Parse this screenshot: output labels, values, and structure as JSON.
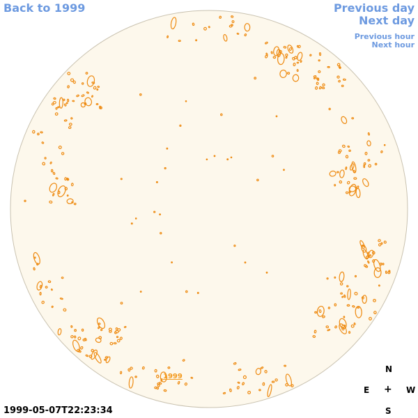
{
  "nav": {
    "back": "Back to 1999",
    "previous_day": "Previous day",
    "next_day": "Next day",
    "previous_hour": "Previous hour",
    "next_hour": "Next hour"
  },
  "timestamp": "1999-05-07T22:23:34",
  "year_label": "1999",
  "compass": {
    "north": "N",
    "east": "E",
    "center": "+",
    "west": "W",
    "south": "S"
  },
  "colors": {
    "link": "#6d9ae0",
    "disk_fill": "#fdf8ec",
    "disk_stroke": "#c9c2b0",
    "feature": "#ee8a10"
  }
}
